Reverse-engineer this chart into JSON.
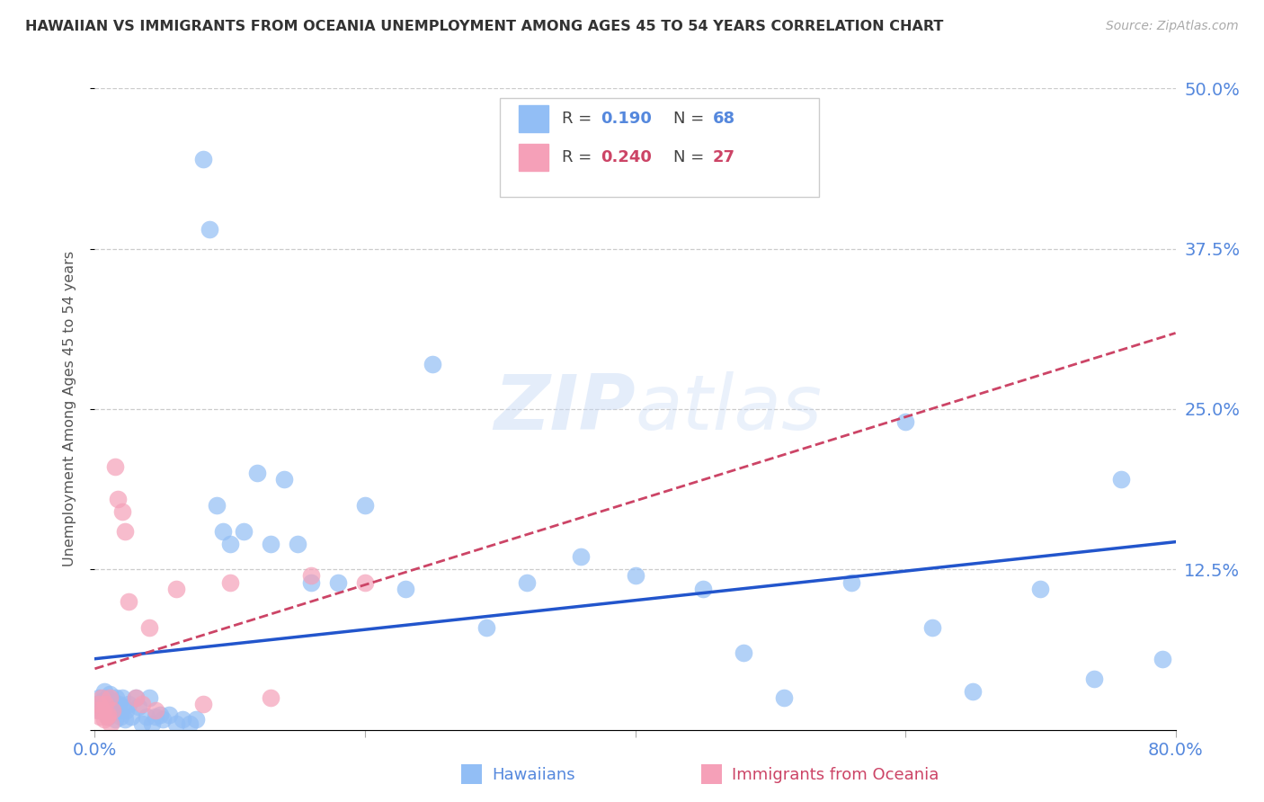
{
  "title": "HAWAIIAN VS IMMIGRANTS FROM OCEANIA UNEMPLOYMENT AMONG AGES 45 TO 54 YEARS CORRELATION CHART",
  "source": "Source: ZipAtlas.com",
  "ylabel": "Unemployment Among Ages 45 to 54 years",
  "xlim": [
    0.0,
    0.8
  ],
  "ylim": [
    0.0,
    0.5
  ],
  "hawaiians_R": 0.19,
  "hawaiians_N": 68,
  "oceania_R": 0.24,
  "oceania_N": 27,
  "hawaiian_color": "#92bef5",
  "oceania_color": "#f5a0b8",
  "trendline_hawaiian_color": "#2255cc",
  "trendline_oceania_color": "#cc4466",
  "axis_label_color": "#5588dd",
  "watermark": "ZIPatlas",
  "hawaiians_x": [
    0.002,
    0.003,
    0.004,
    0.005,
    0.006,
    0.007,
    0.008,
    0.009,
    0.01,
    0.011,
    0.012,
    0.013,
    0.014,
    0.015,
    0.016,
    0.017,
    0.018,
    0.019,
    0.02,
    0.021,
    0.022,
    0.023,
    0.025,
    0.027,
    0.03,
    0.032,
    0.035,
    0.038,
    0.04,
    0.042,
    0.045,
    0.048,
    0.05,
    0.055,
    0.06,
    0.065,
    0.07,
    0.075,
    0.08,
    0.085,
    0.09,
    0.095,
    0.1,
    0.11,
    0.12,
    0.13,
    0.14,
    0.15,
    0.16,
    0.18,
    0.2,
    0.23,
    0.25,
    0.29,
    0.32,
    0.36,
    0.4,
    0.45,
    0.48,
    0.51,
    0.56,
    0.6,
    0.65,
    0.7,
    0.74,
    0.76,
    0.79,
    0.62
  ],
  "hawaiians_y": [
    0.02,
    0.025,
    0.015,
    0.022,
    0.018,
    0.03,
    0.02,
    0.025,
    0.01,
    0.028,
    0.015,
    0.018,
    0.022,
    0.008,
    0.025,
    0.015,
    0.02,
    0.01,
    0.025,
    0.018,
    0.008,
    0.015,
    0.02,
    0.01,
    0.025,
    0.018,
    0.005,
    0.01,
    0.025,
    0.005,
    0.01,
    0.012,
    0.008,
    0.012,
    0.005,
    0.008,
    0.005,
    0.008,
    0.445,
    0.39,
    0.175,
    0.155,
    0.145,
    0.155,
    0.2,
    0.145,
    0.195,
    0.145,
    0.115,
    0.115,
    0.175,
    0.11,
    0.285,
    0.08,
    0.115,
    0.135,
    0.12,
    0.11,
    0.06,
    0.025,
    0.115,
    0.24,
    0.03,
    0.11,
    0.04,
    0.195,
    0.055,
    0.08
  ],
  "oceania_x": [
    0.002,
    0.003,
    0.004,
    0.005,
    0.006,
    0.007,
    0.008,
    0.009,
    0.01,
    0.011,
    0.012,
    0.013,
    0.015,
    0.017,
    0.02,
    0.022,
    0.025,
    0.03,
    0.035,
    0.04,
    0.045,
    0.06,
    0.08,
    0.1,
    0.13,
    0.16,
    0.2
  ],
  "oceania_y": [
    0.015,
    0.02,
    0.01,
    0.025,
    0.015,
    0.008,
    0.02,
    0.01,
    0.012,
    0.025,
    0.005,
    0.015,
    0.205,
    0.18,
    0.17,
    0.155,
    0.1,
    0.025,
    0.02,
    0.08,
    0.015,
    0.11,
    0.02,
    0.115,
    0.025,
    0.12,
    0.115
  ]
}
